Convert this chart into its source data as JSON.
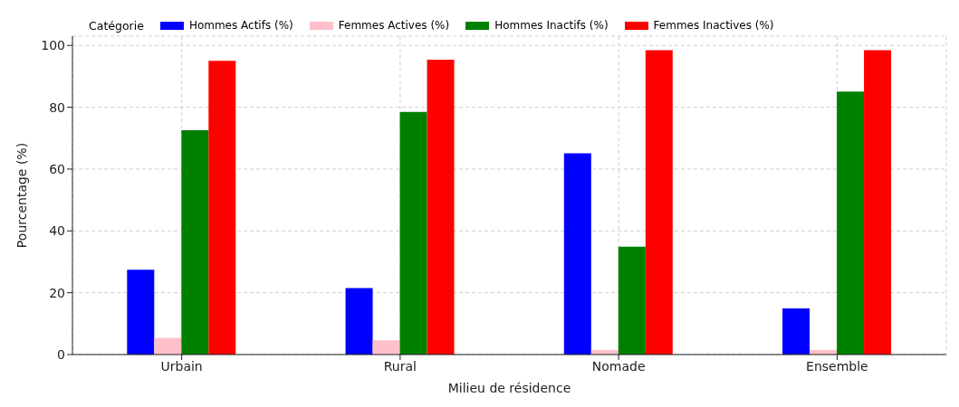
{
  "chart_data": {
    "type": "bar",
    "xlabel": "Milieu de résidence",
    "ylabel": "Pourcentage (%)",
    "legend_title": "Catégorie",
    "categories": [
      "Urbain",
      "Rural",
      "Nomade",
      "Ensemble"
    ],
    "series": [
      {
        "name": "Hommes Actifs (%)",
        "color": "#0000ff",
        "values": [
          27.4,
          21.5,
          65.1,
          14.9
        ]
      },
      {
        "name": "Femmes Actives (%)",
        "color": "#ffc0cb",
        "values": [
          5.4,
          4.6,
          1.5,
          1.5
        ]
      },
      {
        "name": "Hommes Inactifs (%)",
        "color": "#008000",
        "values": [
          72.6,
          78.5,
          34.9,
          85.1
        ]
      },
      {
        "name": "Femmes Inactives (%)",
        "color": "#ff0000",
        "values": [
          95.0,
          95.4,
          98.5,
          98.5
        ]
      }
    ],
    "ylim": [
      0,
      103
    ],
    "yticks": [
      0,
      20,
      40,
      60,
      80,
      100
    ],
    "grid": true,
    "legend": "top left"
  }
}
